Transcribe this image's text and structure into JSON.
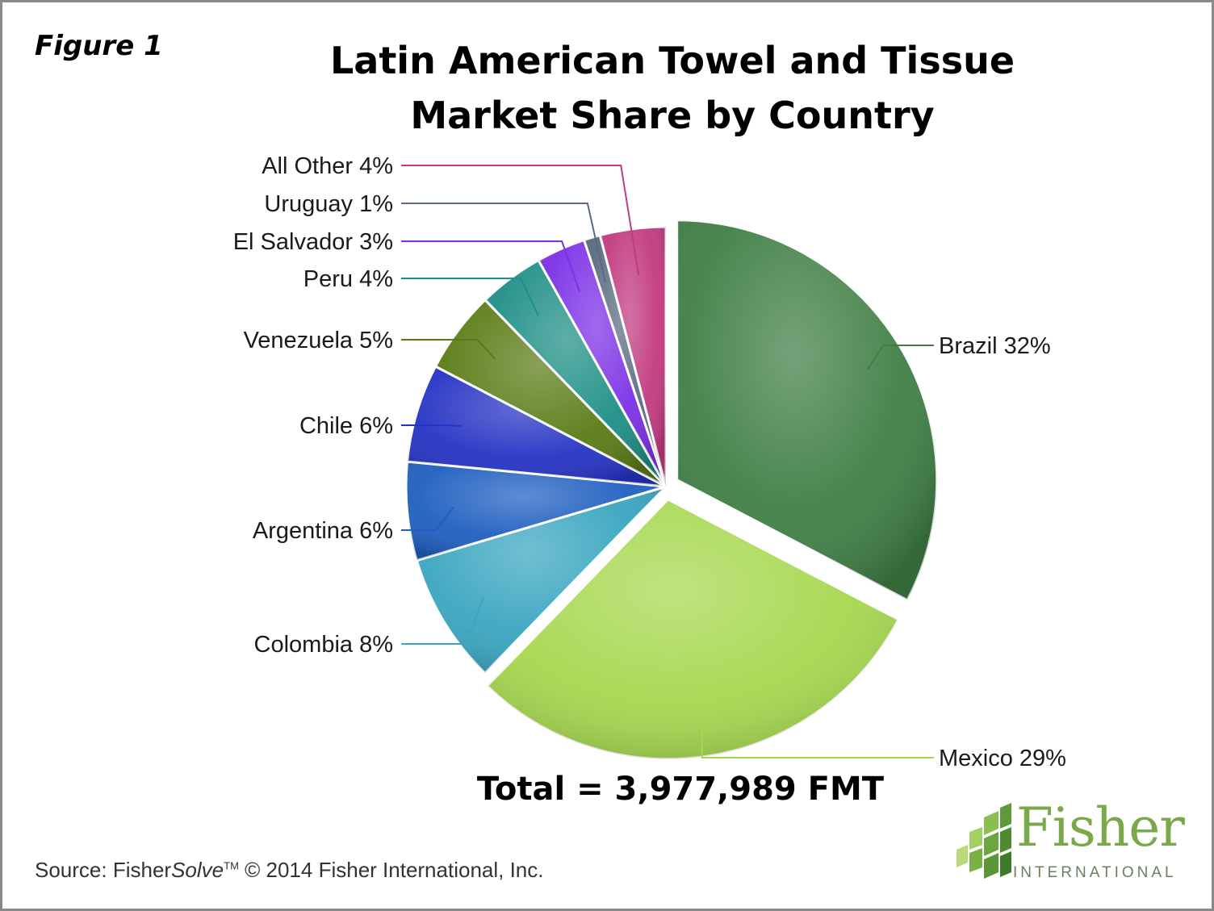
{
  "figure_label": "Figure 1",
  "chart_data": {
    "type": "pie",
    "title_lines": [
      "Latin American Towel and Tissue",
      "Market Share by Country"
    ],
    "slices": [
      {
        "name": "Brazil",
        "value": 32,
        "label": "Brazil 32%",
        "color": "#3f7f45",
        "exploded": true
      },
      {
        "name": "Mexico",
        "value": 29,
        "label": "Mexico 29%",
        "color": "#a6d84f",
        "exploded": true
      },
      {
        "name": "Colombia",
        "value": 8,
        "label": "Colombia 8%",
        "color": "#3aa6c0",
        "exploded": false
      },
      {
        "name": "Argentina",
        "value": 6,
        "label": "Argentina 6%",
        "color": "#1f5fc0",
        "exploded": false
      },
      {
        "name": "Chile",
        "value": 6,
        "label": "Chile 6%",
        "color": "#2633c4",
        "exploded": false
      },
      {
        "name": "Venezuela",
        "value": 5,
        "label": "Venezuela 5%",
        "color": "#5a7c16",
        "exploded": false
      },
      {
        "name": "Peru",
        "value": 4,
        "label": "Peru 4%",
        "color": "#1e8f86",
        "exploded": false
      },
      {
        "name": "El Salvador",
        "value": 3,
        "label": "El Salvador 3%",
        "color": "#7b30e6",
        "exploded": false
      },
      {
        "name": "Uruguay",
        "value": 1,
        "label": "Uruguay 1%",
        "color": "#5a6a80",
        "exploded": false
      },
      {
        "name": "All Other",
        "value": 4,
        "label": "All Other 4%",
        "color": "#c23a80",
        "exploded": false
      }
    ],
    "total_label": "Total = 3,977,989 FMT"
  },
  "source": {
    "prefix": "Source: Fisher",
    "italic": "Solve",
    "tm": "TM",
    "suffix": " © 2014 Fisher International, Inc."
  },
  "logo": {
    "name": "Fisher",
    "sub": "INTERNATIONAL",
    "color": "#7aa84a"
  }
}
